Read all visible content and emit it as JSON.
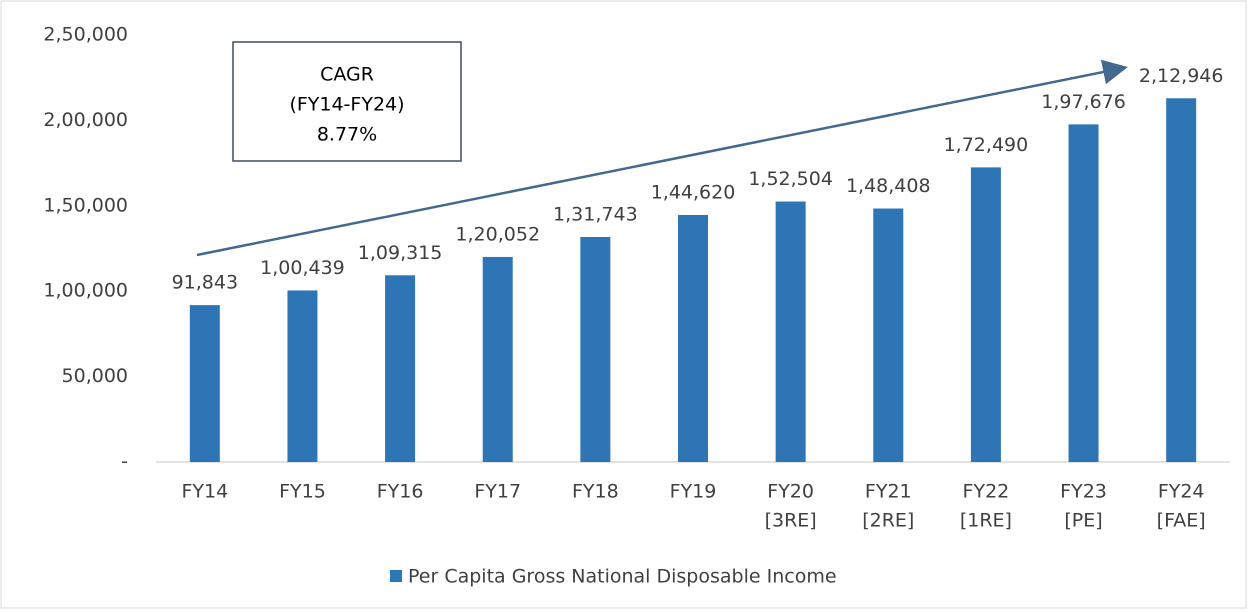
{
  "chart_data": {
    "type": "bar",
    "categories": [
      [
        "FY14"
      ],
      [
        "FY15"
      ],
      [
        "FY16"
      ],
      [
        "FY17"
      ],
      [
        "FY18"
      ],
      [
        "FY19"
      ],
      [
        "FY20",
        "[3RE]"
      ],
      [
        "FY21",
        "[2RE]"
      ],
      [
        "FY22",
        "[1RE]"
      ],
      [
        "FY23",
        "[PE]"
      ],
      [
        "FY24",
        "[FAE]"
      ]
    ],
    "series": [
      {
        "name": "Per Capita Gross National Disposable Income",
        "color": "#2e75b6",
        "values": [
          91843,
          100439,
          109315,
          120052,
          131743,
          144620,
          152504,
          148408,
          172490,
          197676,
          212946
        ],
        "value_labels": [
          "91,843",
          "1,00,439",
          "1,09,315",
          "1,20,052",
          "1,31,743",
          "1,44,620",
          "1,52,504",
          "1,48,408",
          "1,72,490",
          "1,97,676",
          "2,12,946"
        ]
      }
    ],
    "ylim": [
      0,
      250000
    ],
    "yticks": [
      {
        "value": 0,
        "label": "-"
      },
      {
        "value": 50000,
        "label": "50,000"
      },
      {
        "value": 100000,
        "label": "1,00,000"
      },
      {
        "value": 150000,
        "label": "1,50,000"
      },
      {
        "value": 200000,
        "label": "2,00,000"
      },
      {
        "value": 250000,
        "label": "2,50,000"
      }
    ],
    "annotation": [
      "CAGR",
      "(FY14-FY24)",
      "8.77%"
    ],
    "legend": "bottom"
  }
}
